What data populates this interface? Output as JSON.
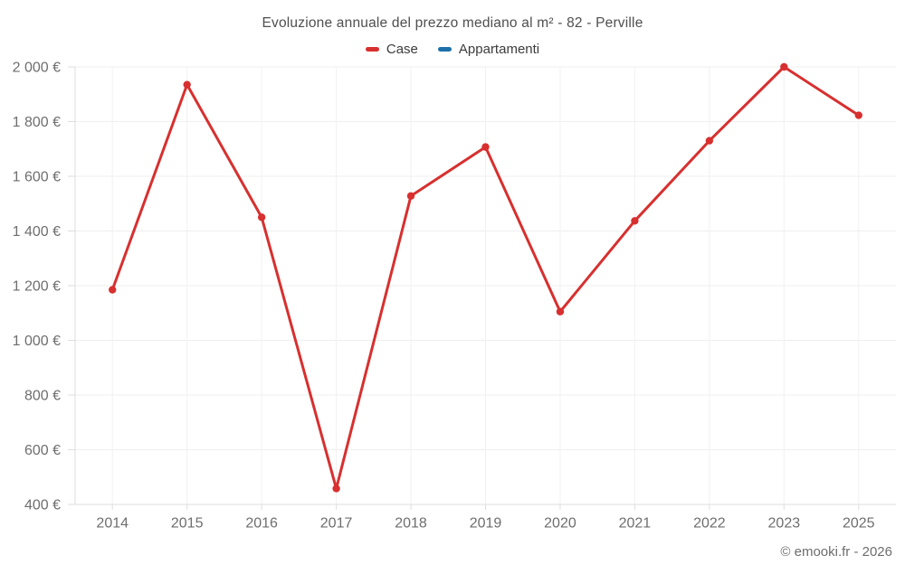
{
  "footer": {
    "credit": "© emooki.fr - 2026"
  },
  "chart_data": {
    "type": "line",
    "title": "Evoluzione annuale del prezzo mediano al m² - 82 - Perville",
    "xlabel": "",
    "ylabel": "",
    "categories": [
      "2014",
      "2015",
      "2016",
      "2017",
      "2018",
      "2019",
      "2020",
      "2021",
      "2022",
      "2023",
      "2025"
    ],
    "series": [
      {
        "name": "Case",
        "color": "#d7302f",
        "values": [
          1185,
          1935,
          1450,
          458,
          1528,
          1707,
          1105,
          1437,
          1730,
          2000,
          1823
        ]
      },
      {
        "name": "Appartamenti",
        "color": "#1d71a8",
        "values": []
      }
    ],
    "ylim": [
      400,
      2000
    ],
    "ytick_step": 200,
    "ytick_labels": [
      "400 €",
      "600 €",
      "800 €",
      "1 000 €",
      "1 200 €",
      "1 400 €",
      "1 600 €",
      "1 800 €",
      "2 000 €"
    ],
    "currency_suffix": " €",
    "grid": true,
    "legend_position": "top"
  }
}
